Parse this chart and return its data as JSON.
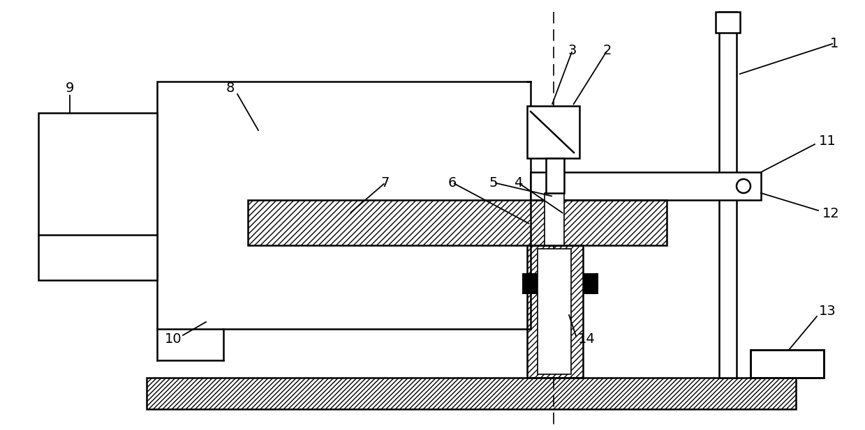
{
  "figsize": [
    12.39,
    6.17
  ],
  "dpi": 100,
  "background": "white",
  "lw": 1.8,
  "lw_thin": 1.2,
  "label_fs": 14
}
